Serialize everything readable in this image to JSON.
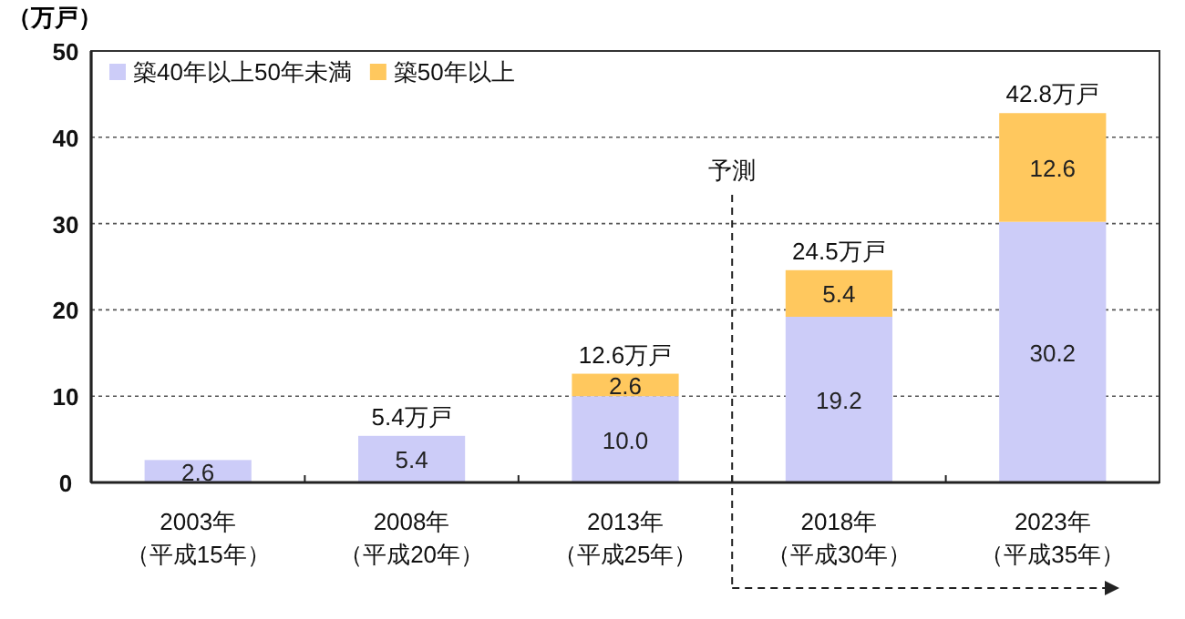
{
  "chart_data": {
    "type": "bar",
    "stacked": true,
    "ylabel": "（万戸）",
    "categories": [
      "2003年（平成15年）",
      "2008年（平成20年）",
      "2013年（平成25年）",
      "2018年（平成30年）",
      "2023年（平成35年）"
    ],
    "series": [
      {
        "name": "築40年以上50年未満",
        "color": "#ccccf8",
        "values": [
          2.6,
          5.4,
          10.0,
          19.2,
          30.2
        ],
        "value_labels": [
          "2.6",
          "5.4",
          "10.0",
          "19.2",
          "30.2"
        ]
      },
      {
        "name": "築50年以上",
        "color": "#ffc85e",
        "values": [
          null,
          null,
          2.6,
          5.4,
          12.6
        ],
        "value_labels": [
          null,
          null,
          "2.6",
          "5.4",
          "12.6"
        ]
      }
    ],
    "totals": [
      null,
      "5.4万戸",
      "12.6万戸",
      "24.5万戸",
      "42.8万戸"
    ],
    "ylim": [
      0,
      50
    ],
    "yticks": [
      0,
      10,
      20,
      30,
      40,
      50
    ],
    "grid": "y",
    "legend": "top left",
    "ref_lines": [
      {
        "axis": "x",
        "value": "2018年（平成30年）",
        "label": "予測",
        "line_style": "dashed"
      }
    ]
  }
}
